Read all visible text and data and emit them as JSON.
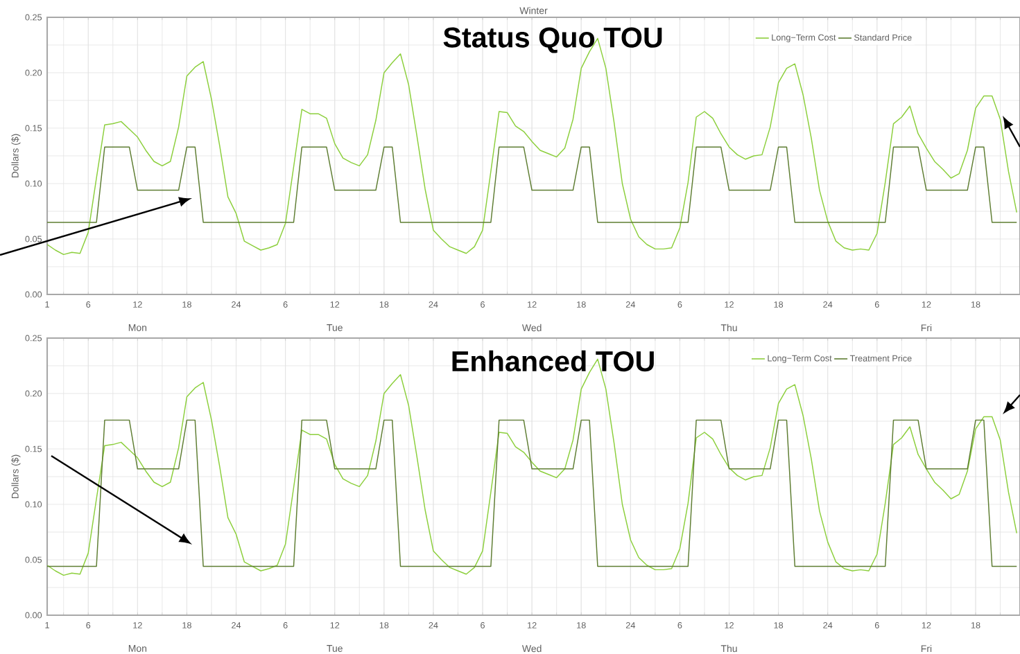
{
  "chart_data": [
    {
      "type": "line",
      "title": "Winter",
      "ylabel": "Dollars ($)",
      "grid": true,
      "legend": "top right",
      "ylim": [
        0,
        0.25
      ],
      "categories": [
        "1",
        null,
        null,
        null,
        null,
        "6",
        null,
        null,
        null,
        null,
        null,
        "12",
        null,
        null,
        null,
        null,
        null,
        "18",
        null,
        null,
        null,
        null,
        null,
        "24",
        null,
        null,
        null,
        null,
        null,
        "6",
        null,
        null,
        null,
        null,
        null,
        "12",
        null,
        null,
        null,
        null,
        null,
        "18",
        null,
        null,
        null,
        null,
        null,
        "24",
        null,
        null,
        null,
        null,
        null,
        "6",
        null,
        null,
        null,
        null,
        null,
        "12",
        null,
        null,
        null,
        null,
        null,
        "18",
        null,
        null,
        null,
        null,
        null,
        "24",
        null,
        null,
        null,
        null,
        null,
        "6",
        null,
        null,
        null,
        null,
        null,
        "12",
        null,
        null,
        null,
        null,
        null,
        "18",
        null,
        null,
        null,
        null,
        null,
        "24",
        null,
        null,
        null,
        null,
        null,
        "6",
        null,
        null,
        null,
        null,
        null,
        "12",
        null,
        null,
        null,
        null,
        null,
        "18",
        null,
        null,
        null,
        null,
        null
      ],
      "yticks": [
        {
          "value": 0,
          "label": "0.00"
        },
        {
          "value": 0.025,
          "label": null
        },
        {
          "value": 0.05,
          "label": "0.05"
        },
        {
          "value": 0.075,
          "label": null
        },
        {
          "value": 0.1,
          "label": "0.10"
        },
        {
          "value": 0.125,
          "label": null
        },
        {
          "value": 0.15,
          "label": "0.15"
        },
        {
          "value": 0.175,
          "label": null
        },
        {
          "value": 0.2,
          "label": "0.20"
        },
        {
          "value": 0.225,
          "label": null
        },
        {
          "value": 0.25,
          "label": "0.25"
        }
      ],
      "annotations": [
        "Status Quo TOU",
        "Mon",
        "Tue",
        "Wed",
        "Thu",
        "Fri"
      ],
      "series": [
        {
          "name": "Long−Term Cost",
          "color": "#8ccf3c",
          "values": [
            0.045,
            0.04,
            0.036,
            0.038,
            0.037,
            0.056,
            0.105,
            0.153,
            0.154,
            0.156,
            0.149,
            0.142,
            0.13,
            0.12,
            0.116,
            0.12,
            0.151,
            0.197,
            0.205,
            0.21,
            0.176,
            0.134,
            0.088,
            0.073,
            0.048,
            0.044,
            0.04,
            0.042,
            0.045,
            0.064,
            0.115,
            0.167,
            0.163,
            0.163,
            0.159,
            0.136,
            0.123,
            0.119,
            0.116,
            0.126,
            0.157,
            0.2,
            0.209,
            0.217,
            0.189,
            0.143,
            0.095,
            0.058,
            0.05,
            0.043,
            0.04,
            0.037,
            0.043,
            0.058,
            0.111,
            0.165,
            0.164,
            0.152,
            0.147,
            0.138,
            0.13,
            0.127,
            0.124,
            0.132,
            0.158,
            0.204,
            0.219,
            0.231,
            0.204,
            0.155,
            0.1,
            0.068,
            0.052,
            0.045,
            0.041,
            0.041,
            0.042,
            0.06,
            0.101,
            0.16,
            0.165,
            0.159,
            0.145,
            0.133,
            0.126,
            0.122,
            0.125,
            0.126,
            0.151,
            0.191,
            0.204,
            0.208,
            0.18,
            0.141,
            0.094,
            0.066,
            0.048,
            0.042,
            0.04,
            0.041,
            0.04,
            0.055,
            0.101,
            0.154,
            0.16,
            0.17,
            0.145,
            0.132,
            0.12,
            0.113,
            0.105,
            0.109,
            0.13,
            0.168,
            0.179,
            0.179,
            0.158,
            0.111,
            0.074
          ]
        },
        {
          "name": "Standard Price",
          "color": "#5e7d32",
          "values": [
            0.065,
            0.065,
            0.065,
            0.065,
            0.065,
            0.065,
            0.065,
            0.133,
            0.133,
            0.133,
            0.133,
            0.094,
            0.094,
            0.094,
            0.094,
            0.094,
            0.094,
            0.133,
            0.133,
            0.065,
            0.065,
            0.065,
            0.065,
            0.065,
            0.065,
            0.065,
            0.065,
            0.065,
            0.065,
            0.065,
            0.065,
            0.133,
            0.133,
            0.133,
            0.133,
            0.094,
            0.094,
            0.094,
            0.094,
            0.094,
            0.094,
            0.133,
            0.133,
            0.065,
            0.065,
            0.065,
            0.065,
            0.065,
            0.065,
            0.065,
            0.065,
            0.065,
            0.065,
            0.065,
            0.065,
            0.133,
            0.133,
            0.133,
            0.133,
            0.094,
            0.094,
            0.094,
            0.094,
            0.094,
            0.094,
            0.133,
            0.133,
            0.065,
            0.065,
            0.065,
            0.065,
            0.065,
            0.065,
            0.065,
            0.065,
            0.065,
            0.065,
            0.065,
            0.065,
            0.133,
            0.133,
            0.133,
            0.133,
            0.094,
            0.094,
            0.094,
            0.094,
            0.094,
            0.094,
            0.133,
            0.133,
            0.065,
            0.065,
            0.065,
            0.065,
            0.065,
            0.065,
            0.065,
            0.065,
            0.065,
            0.065,
            0.065,
            0.065,
            0.133,
            0.133,
            0.133,
            0.133,
            0.094,
            0.094,
            0.094,
            0.094,
            0.094,
            0.094,
            0.133,
            0.133,
            0.065,
            0.065,
            0.065,
            0.065
          ]
        }
      ]
    },
    {
      "type": "line",
      "ylabel": "Dollars ($)",
      "grid": true,
      "legend": "top right",
      "ylim": [
        0,
        0.25
      ],
      "categories": [
        "1",
        null,
        null,
        null,
        null,
        "6",
        null,
        null,
        null,
        null,
        null,
        "12",
        null,
        null,
        null,
        null,
        null,
        "18",
        null,
        null,
        null,
        null,
        null,
        "24",
        null,
        null,
        null,
        null,
        null,
        "6",
        null,
        null,
        null,
        null,
        null,
        "12",
        null,
        null,
        null,
        null,
        null,
        "18",
        null,
        null,
        null,
        null,
        null,
        "24",
        null,
        null,
        null,
        null,
        null,
        "6",
        null,
        null,
        null,
        null,
        null,
        "12",
        null,
        null,
        null,
        null,
        null,
        "18",
        null,
        null,
        null,
        null,
        null,
        "24",
        null,
        null,
        null,
        null,
        null,
        "6",
        null,
        null,
        null,
        null,
        null,
        "12",
        null,
        null,
        null,
        null,
        null,
        "18",
        null,
        null,
        null,
        null,
        null,
        "24",
        null,
        null,
        null,
        null,
        null,
        "6",
        null,
        null,
        null,
        null,
        null,
        "12",
        null,
        null,
        null,
        null,
        null,
        "18",
        null,
        null,
        null,
        null,
        null
      ],
      "yticks": [
        {
          "value": 0,
          "label": "0.00"
        },
        {
          "value": 0.025,
          "label": null
        },
        {
          "value": 0.05,
          "label": "0.05"
        },
        {
          "value": 0.075,
          "label": null
        },
        {
          "value": 0.1,
          "label": "0.10"
        },
        {
          "value": 0.125,
          "label": null
        },
        {
          "value": 0.15,
          "label": "0.15"
        },
        {
          "value": 0.175,
          "label": null
        },
        {
          "value": 0.2,
          "label": "0.20"
        },
        {
          "value": 0.225,
          "label": null
        },
        {
          "value": 0.25,
          "label": "0.25"
        }
      ],
      "annotations": [
        "Enhanced TOU",
        "Mon",
        "Tue",
        "Wed",
        "Thu",
        "Fri"
      ],
      "series": [
        {
          "name": "Long−Term Cost",
          "color": "#8ccf3c",
          "values": [
            0.045,
            0.04,
            0.036,
            0.038,
            0.037,
            0.056,
            0.105,
            0.153,
            0.154,
            0.156,
            0.149,
            0.142,
            0.13,
            0.12,
            0.116,
            0.12,
            0.151,
            0.197,
            0.205,
            0.21,
            0.176,
            0.134,
            0.088,
            0.073,
            0.048,
            0.044,
            0.04,
            0.042,
            0.045,
            0.064,
            0.115,
            0.167,
            0.163,
            0.163,
            0.159,
            0.136,
            0.123,
            0.119,
            0.116,
            0.126,
            0.157,
            0.2,
            0.209,
            0.217,
            0.189,
            0.143,
            0.095,
            0.058,
            0.05,
            0.043,
            0.04,
            0.037,
            0.043,
            0.058,
            0.111,
            0.165,
            0.164,
            0.152,
            0.147,
            0.138,
            0.13,
            0.127,
            0.124,
            0.132,
            0.158,
            0.204,
            0.219,
            0.231,
            0.204,
            0.155,
            0.1,
            0.068,
            0.052,
            0.045,
            0.041,
            0.041,
            0.042,
            0.06,
            0.101,
            0.16,
            0.165,
            0.159,
            0.145,
            0.133,
            0.126,
            0.122,
            0.125,
            0.126,
            0.151,
            0.191,
            0.204,
            0.208,
            0.18,
            0.141,
            0.094,
            0.066,
            0.048,
            0.042,
            0.04,
            0.041,
            0.04,
            0.055,
            0.101,
            0.154,
            0.16,
            0.17,
            0.145,
            0.132,
            0.12,
            0.113,
            0.105,
            0.109,
            0.13,
            0.168,
            0.179,
            0.179,
            0.158,
            0.111,
            0.074
          ]
        },
        {
          "name": "Treatment Price",
          "color": "#5e7d32",
          "values": [
            0.044,
            0.044,
            0.044,
            0.044,
            0.044,
            0.044,
            0.044,
            0.176,
            0.176,
            0.176,
            0.176,
            0.132,
            0.132,
            0.132,
            0.132,
            0.132,
            0.132,
            0.176,
            0.176,
            0.044,
            0.044,
            0.044,
            0.044,
            0.044,
            0.044,
            0.044,
            0.044,
            0.044,
            0.044,
            0.044,
            0.044,
            0.176,
            0.176,
            0.176,
            0.176,
            0.132,
            0.132,
            0.132,
            0.132,
            0.132,
            0.132,
            0.176,
            0.176,
            0.044,
            0.044,
            0.044,
            0.044,
            0.044,
            0.044,
            0.044,
            0.044,
            0.044,
            0.044,
            0.044,
            0.044,
            0.176,
            0.176,
            0.176,
            0.176,
            0.132,
            0.132,
            0.132,
            0.132,
            0.132,
            0.132,
            0.176,
            0.176,
            0.044,
            0.044,
            0.044,
            0.044,
            0.044,
            0.044,
            0.044,
            0.044,
            0.044,
            0.044,
            0.044,
            0.044,
            0.176,
            0.176,
            0.176,
            0.176,
            0.132,
            0.132,
            0.132,
            0.132,
            0.132,
            0.132,
            0.176,
            0.176,
            0.044,
            0.044,
            0.044,
            0.044,
            0.044,
            0.044,
            0.044,
            0.044,
            0.044,
            0.044,
            0.044,
            0.044,
            0.176,
            0.176,
            0.176,
            0.176,
            0.132,
            0.132,
            0.132,
            0.132,
            0.132,
            0.132,
            0.176,
            0.176,
            0.044,
            0.044,
            0.044,
            0.044
          ]
        }
      ]
    }
  ]
}
